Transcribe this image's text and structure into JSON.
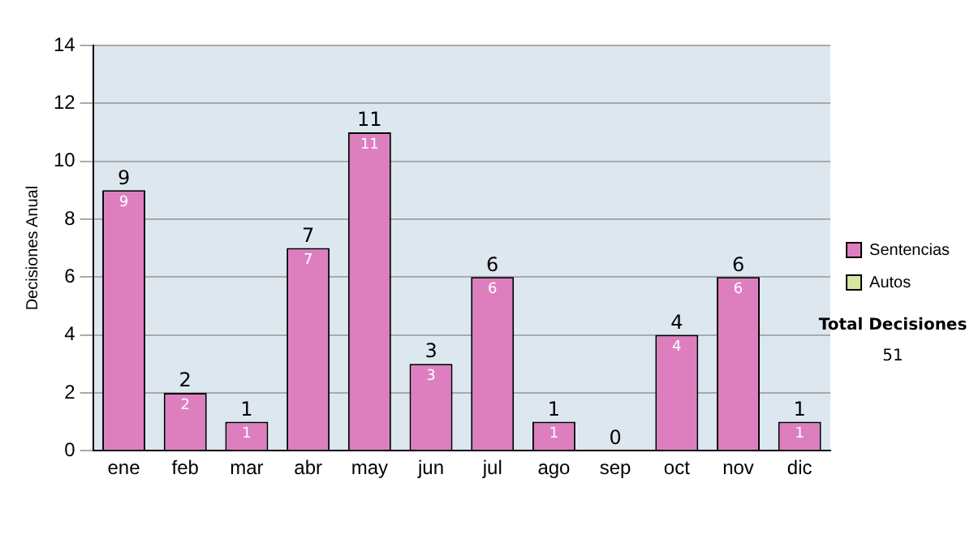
{
  "chart_data": {
    "type": "bar",
    "stacked": true,
    "ylabel": "Decisiones Anual",
    "categories": [
      "ene",
      "feb",
      "mar",
      "abr",
      "may",
      "jun",
      "jul",
      "ago",
      "sep",
      "oct",
      "nov",
      "dic"
    ],
    "series": [
      {
        "name": "Sentencias",
        "color": "#dd7fbf",
        "values": [
          9,
          2,
          1,
          7,
          11,
          3,
          6,
          1,
          0,
          4,
          6,
          1
        ],
        "value_labels": [
          "9",
          "2",
          "1",
          "7",
          "11",
          "3",
          "6",
          "1",
          null,
          "4",
          "6",
          "1"
        ]
      },
      {
        "name": "Autos",
        "color": "#d4e6a0",
        "values": [
          0,
          0,
          0,
          0,
          0,
          0,
          0,
          0,
          0,
          0,
          0,
          0
        ]
      }
    ],
    "totals": [
      "9",
      "2",
      "1",
      "7",
      "11",
      "3",
      "6",
      "1",
      "0",
      "4",
      "6",
      "1"
    ],
    "ylim": [
      0,
      14
    ],
    "yticks": [
      0,
      2,
      4,
      6,
      8,
      10,
      12,
      14
    ],
    "grid": "y",
    "legend": "right",
    "annotations": [
      "Total Decisiones",
      "51"
    ]
  }
}
